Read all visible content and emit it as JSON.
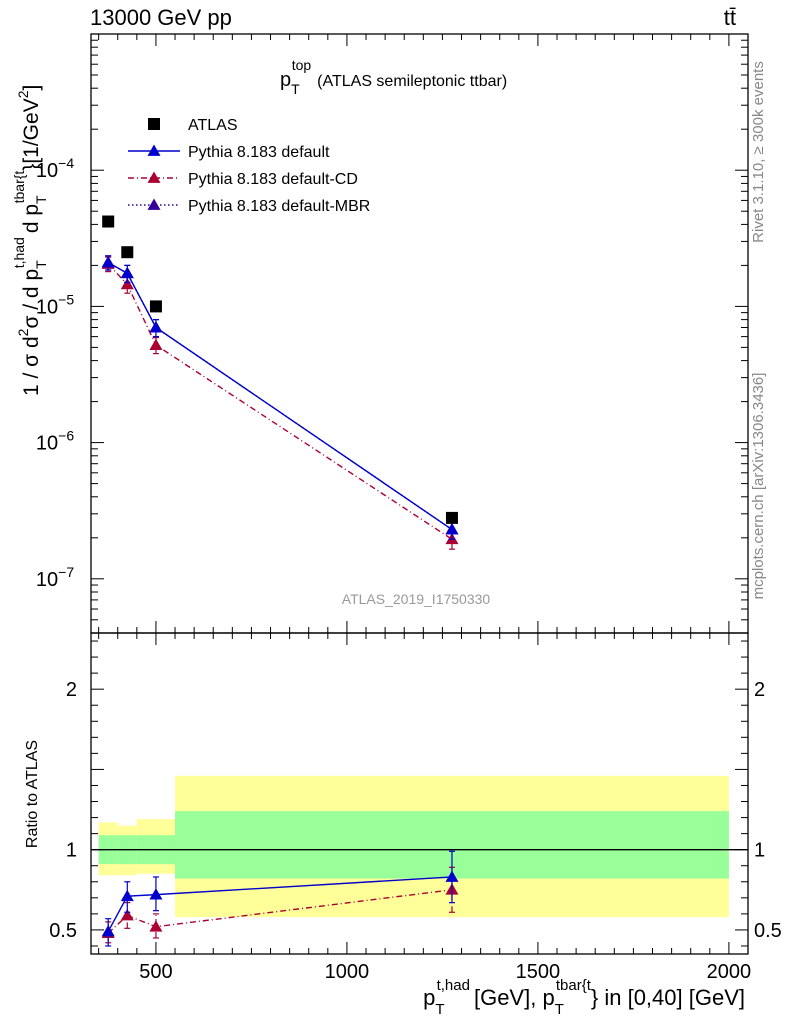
{
  "header": {
    "energy_label": "13000 GeV pp",
    "process_label": "tt̄"
  },
  "side_labels": {
    "rivet": "Rivet 3.1.10, ≥ 300k events",
    "mcplots": "mcplots.cern.ch [arXiv:1306.3436]"
  },
  "chart_data": [
    {
      "type": "line",
      "panel": "main",
      "title": "p",
      "title_sub": "T",
      "title_sup": "top",
      "title_rest": "(ATLAS semileptonic ttbar)",
      "analysis_label": "ATLAS_2019_I1750330",
      "yscale": "log",
      "ylim": [
        4e-08,
        0.001
      ],
      "xlim": [
        330,
        2050
      ],
      "ylabel": {
        "main": "1 / σ d",
        "sup2": "2",
        "sigma_d": "σ / d p",
        "sub_T": "T",
        "sup_thad": "t,had",
        "d_p": "d p",
        "sup_tbar": "tbar{t",
        "close": "}",
        "units": "[1/GeV",
        "units_close": "]"
      },
      "y_ticks": [
        {
          "label": "10",
          "exp": "−7",
          "value": 1e-07
        },
        {
          "label": "10",
          "exp": "−6",
          "value": 1e-06
        },
        {
          "label": "10",
          "exp": "−5",
          "value": 1e-05
        },
        {
          "label": "10",
          "exp": "−4",
          "value": 0.0001
        }
      ],
      "legend": [
        {
          "label": "ATLAS",
          "color": "#000000",
          "marker": "square",
          "line": "none"
        },
        {
          "label": "Pythia 8.183 default",
          "color": "#0000cc",
          "marker": "triangle",
          "line": "solid"
        },
        {
          "label": "Pythia 8.183 default-CD",
          "color": "#aa0033",
          "marker": "triangle",
          "line": "dashdot"
        },
        {
          "label": "Pythia 8.183 default-MBR",
          "color": "#330099",
          "marker": "triangle",
          "line": "dotted"
        }
      ],
      "series": [
        {
          "name": "ATLAS",
          "x": [
            375,
            425,
            500,
            1275
          ],
          "y": [
            4.2e-05,
            2.5e-05,
            1e-05,
            2.8e-07
          ]
        },
        {
          "name": "Pythia 8.183 default",
          "x": [
            375,
            425,
            500,
            1275
          ],
          "y": [
            2.1e-05,
            1.75e-05,
            7e-06,
            2.3e-07
          ],
          "y_lo": [
            1.85e-05,
            1.5e-05,
            6e-06,
            1.95e-07
          ],
          "y_hi": [
            2.35e-05,
            2e-05,
            8e-06,
            2.65e-07
          ]
        },
        {
          "name": "Pythia 8.183 default-CD",
          "x": [
            375,
            425,
            500,
            1275
          ],
          "y": [
            2.05e-05,
            1.45e-05,
            5.2e-06,
            1.95e-07
          ],
          "y_lo": [
            1.8e-05,
            1.25e-05,
            4.5e-06,
            1.65e-07
          ],
          "y_hi": [
            2.3e-05,
            1.65e-05,
            5.9e-06,
            2.25e-07
          ]
        },
        {
          "name": "Pythia 8.183 default-MBR",
          "x": [
            375,
            425,
            500,
            1275
          ],
          "y": [
            2.1e-05,
            1.75e-05,
            7e-06,
            2.3e-07
          ],
          "y_lo": [
            1.85e-05,
            1.5e-05,
            6e-06,
            1.95e-07
          ],
          "y_hi": [
            2.35e-05,
            2e-05,
            8e-06,
            2.65e-07
          ]
        }
      ]
    },
    {
      "type": "line",
      "panel": "ratio",
      "ylabel": "Ratio to ATLAS",
      "xlabel": {
        "p": "p",
        "sub_T": "T",
        "sup_thad": "t,had",
        "mid": "[GeV], p",
        "sup_tbar": "tbar{t",
        "end": "} in [0,40] [GeV]"
      },
      "ylim": [
        0.35,
        2.35
      ],
      "xlim": [
        330,
        2050
      ],
      "x_ticks": [
        500,
        1000,
        1500,
        2000
      ],
      "y_ticks": [
        0.5,
        1,
        2
      ],
      "bands": [
        {
          "x0": 350,
          "x1": 400,
          "green": [
            0.91,
            1.09
          ],
          "yellow": [
            0.84,
            1.17
          ]
        },
        {
          "x0": 400,
          "x1": 450,
          "green": [
            0.91,
            1.09
          ],
          "yellow": [
            0.84,
            1.15
          ]
        },
        {
          "x0": 450,
          "x1": 550,
          "green": [
            0.91,
            1.09
          ],
          "yellow": [
            0.85,
            1.19
          ]
        },
        {
          "x0": 550,
          "x1": 2000,
          "green": [
            0.82,
            1.24
          ],
          "yellow": [
            0.58,
            1.46
          ]
        }
      ],
      "series": [
        {
          "name": "Pythia 8.183 default",
          "x": [
            375,
            425,
            500,
            1275
          ],
          "y": [
            0.49,
            0.71,
            0.72,
            0.83
          ],
          "y_lo": [
            0.4,
            0.61,
            0.62,
            0.67
          ],
          "y_hi": [
            0.57,
            0.8,
            0.83,
            0.99
          ]
        },
        {
          "name": "Pythia 8.183 default-CD",
          "x": [
            375,
            425,
            500,
            1275
          ],
          "y": [
            0.48,
            0.59,
            0.52,
            0.75
          ],
          "y_lo": [
            0.42,
            0.51,
            0.45,
            0.61
          ],
          "y_hi": [
            0.55,
            0.67,
            0.6,
            0.89
          ]
        }
      ]
    }
  ]
}
